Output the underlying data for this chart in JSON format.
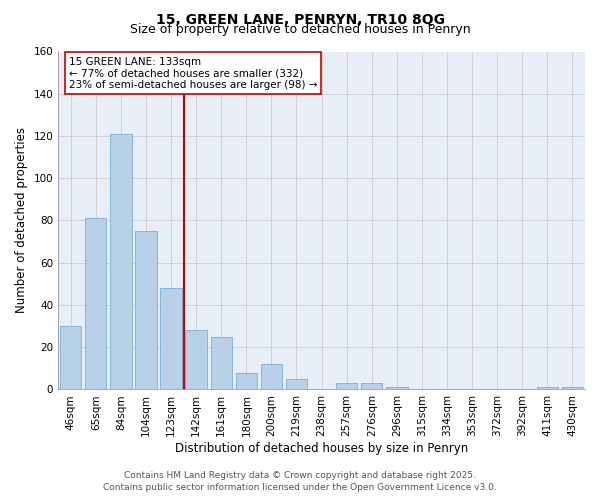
{
  "title_line1": "15, GREEN LANE, PENRYN, TR10 8QG",
  "title_line2": "Size of property relative to detached houses in Penryn",
  "xlabel": "Distribution of detached houses by size in Penryn",
  "ylabel": "Number of detached properties",
  "categories": [
    "46sqm",
    "65sqm",
    "84sqm",
    "104sqm",
    "123sqm",
    "142sqm",
    "161sqm",
    "180sqm",
    "200sqm",
    "219sqm",
    "238sqm",
    "257sqm",
    "276sqm",
    "296sqm",
    "315sqm",
    "334sqm",
    "353sqm",
    "372sqm",
    "392sqm",
    "411sqm",
    "430sqm"
  ],
  "values": [
    30,
    81,
    121,
    75,
    48,
    28,
    25,
    8,
    12,
    5,
    0,
    3,
    3,
    1,
    0,
    0,
    0,
    0,
    0,
    1,
    1
  ],
  "bar_color": "#b8d0e8",
  "bar_edgecolor": "#7aafd4",
  "vline_x_idx": 4.5,
  "vline_color": "#cc0000",
  "annotation_line1": "15 GREEN LANE: 133sqm",
  "annotation_line2": "← 77% of detached houses are smaller (332)",
  "annotation_line3": "23% of semi-detached houses are larger (98) →",
  "annotation_box_edgecolor": "#cc0000",
  "annotation_box_facecolor": "#ffffff",
  "ylim": [
    0,
    160
  ],
  "yticks": [
    0,
    20,
    40,
    60,
    80,
    100,
    120,
    140,
    160
  ],
  "grid_color": "#cccccc",
  "background_color": "#e8eef8",
  "footer_line1": "Contains HM Land Registry data © Crown copyright and database right 2025.",
  "footer_line2": "Contains public sector information licensed under the Open Government Licence v3.0.",
  "title_fontsize": 10,
  "subtitle_fontsize": 9,
  "axis_label_fontsize": 8.5,
  "tick_fontsize": 7.5,
  "annotation_fontsize": 7.5,
  "footer_fontsize": 6.5
}
